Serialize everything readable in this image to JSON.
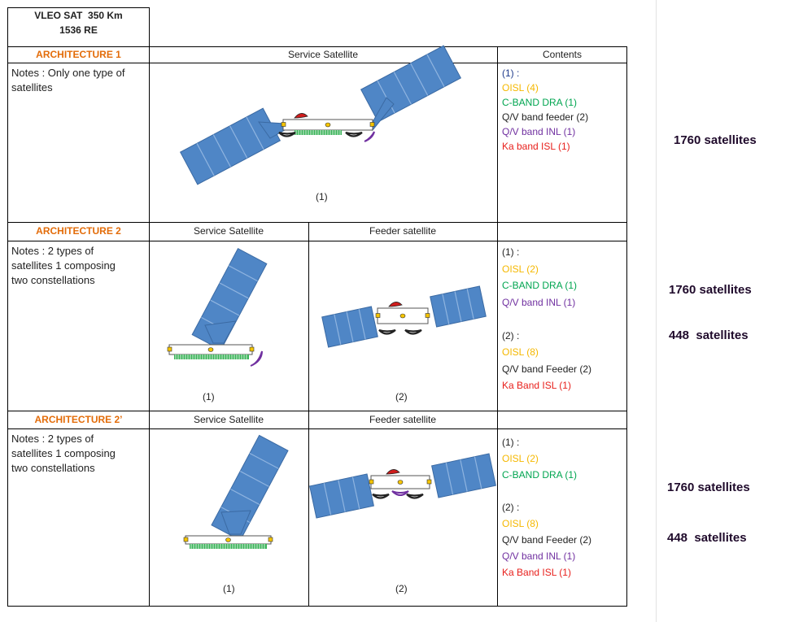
{
  "header": {
    "line1": "VLEO SAT  350 Km",
    "line2": "1536 RE"
  },
  "architectures": [
    {
      "name": "ARCHITECTURE 1",
      "columns": [
        "Service Satellite",
        "Contents"
      ],
      "notes": "Notes : Only one type of satellites",
      "captions": [
        "(1)"
      ],
      "contents": [
        [
          {
            "text": "(1) :",
            "color": "#1f3b8c"
          },
          {
            "text": "OISL (4)",
            "color": "#f5b800"
          },
          {
            "text": "C-BAND DRA (1)",
            "color": "#00a550"
          },
          {
            "text": "Q/V band feeder (2)",
            "color": "#222222"
          },
          {
            "text": "Q/V band INL (1)",
            "color": "#7030a0"
          },
          {
            "text": "Ka band ISL (1)",
            "color": "#e8201c"
          }
        ]
      ],
      "totals": [
        "1760 satellites"
      ]
    },
    {
      "name": "ARCHITECTURE 2",
      "columns": [
        "Service Satellite",
        "Feeder satellite"
      ],
      "notes": "Notes : 2 types of satellites 1 composing two constellations",
      "captions": [
        "(1)",
        "(2)"
      ],
      "contents": [
        [
          {
            "text": "(1) :",
            "color": "#222222"
          },
          {
            "text": "OISL (2)",
            "color": "#f5b800"
          },
          {
            "text": "C-BAND DRA (1)",
            "color": "#00a550"
          },
          {
            "text": "Q/V band INL (1)",
            "color": "#7030a0"
          }
        ],
        [
          {
            "text": "(2) :",
            "color": "#222222"
          },
          {
            "text": "OISL (8)",
            "color": "#f5b800"
          },
          {
            "text": "Q/V band Feeder (2)",
            "color": "#222222"
          },
          {
            "text": "Ka Band ISL (1)",
            "color": "#e8201c"
          }
        ]
      ],
      "totals": [
        "1760 satellites",
        "448  satellites"
      ]
    },
    {
      "name": "ARCHITECTURE 2’",
      "columns": [
        "Service Satellite",
        "Feeder satellite"
      ],
      "notes": "Notes : 2 types of satellites 1 composing two constellations",
      "captions": [
        "(1)",
        "(2)"
      ],
      "contents": [
        [
          {
            "text": "(1) :",
            "color": "#222222"
          },
          {
            "text": "OISL (2)",
            "color": "#f5b800"
          },
          {
            "text": "C-BAND DRA (1)",
            "color": "#00a550"
          }
        ],
        [
          {
            "text": "(2) :",
            "color": "#222222"
          },
          {
            "text": "OISL (8)",
            "color": "#f5b800"
          },
          {
            "text": "Q/V band Feeder (2)",
            "color": "#222222"
          },
          {
            "text": "Q/V band INL (1)",
            "color": "#7030a0"
          },
          {
            "text": "Ka Band ISL (1)",
            "color": "#e8201c"
          }
        ]
      ],
      "totals": [
        "1760 satellites",
        "448  satellites"
      ]
    }
  ]
}
